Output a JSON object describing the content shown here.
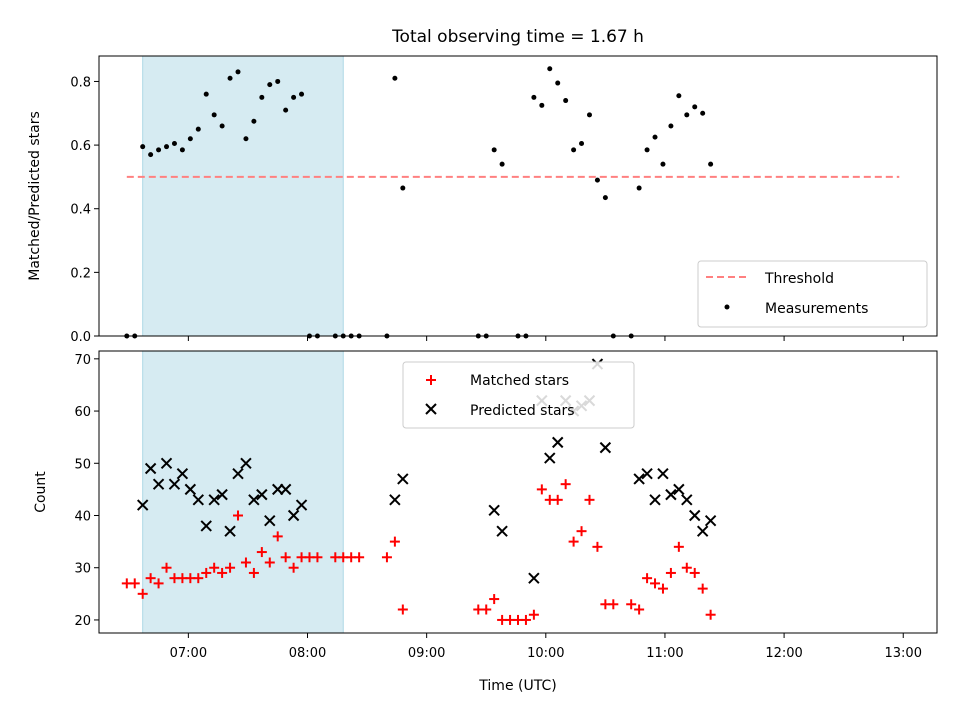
{
  "chart_data": {
    "type": "scatter",
    "title": "Total observing time = 1.67 h",
    "xlabel": "Time (UTC)",
    "x_ticks": [
      "07:00",
      "08:00",
      "09:00",
      "10:00",
      "11:00",
      "12:00",
      "13:00"
    ],
    "xlim": [
      "06:15",
      "13:17"
    ],
    "highlight_span": {
      "start": "06:37",
      "end": "08:18",
      "color": "#add8e6"
    },
    "panels": [
      {
        "ylabel": "Matched/Predicted stars",
        "ylim": [
          0,
          0.88
        ],
        "y_ticks": [
          "0.0",
          "0.2",
          "0.4",
          "0.6",
          "0.8"
        ],
        "legend_position": "lower-right",
        "threshold": {
          "name": "Threshold",
          "value": 0.5,
          "x_range": [
            "06:29",
            "12:58"
          ],
          "color": "#ff8080",
          "style": "dashed"
        },
        "series": [
          {
            "name": "Measurements",
            "marker": "dot",
            "color": "#000000",
            "points": [
              [
                "06:29",
                0.0
              ],
              [
                "06:33",
                0.0
              ],
              [
                "06:37",
                0.595
              ],
              [
                "06:41",
                0.57
              ],
              [
                "06:45",
                0.585
              ],
              [
                "06:49",
                0.595
              ],
              [
                "06:53",
                0.605
              ],
              [
                "06:57",
                0.585
              ],
              [
                "07:01",
                0.62
              ],
              [
                "07:05",
                0.65
              ],
              [
                "07:09",
                0.76
              ],
              [
                "07:13",
                0.695
              ],
              [
                "07:17",
                0.66
              ],
              [
                "07:21",
                0.81
              ],
              [
                "07:25",
                0.83
              ],
              [
                "07:29",
                0.62
              ],
              [
                "07:33",
                0.675
              ],
              [
                "07:37",
                0.75
              ],
              [
                "07:41",
                0.79
              ],
              [
                "07:45",
                0.8
              ],
              [
                "07:49",
                0.71
              ],
              [
                "07:53",
                0.75
              ],
              [
                "07:57",
                0.76
              ],
              [
                "08:01",
                0.0
              ],
              [
                "08:05",
                0.0
              ],
              [
                "08:14",
                0.0
              ],
              [
                "08:18",
                0.0
              ],
              [
                "08:22",
                0.0
              ],
              [
                "08:26",
                0.0
              ],
              [
                "08:40",
                0.0
              ],
              [
                "08:44",
                0.81
              ],
              [
                "08:48",
                0.465
              ],
              [
                "09:26",
                0.0
              ],
              [
                "09:30",
                0.0
              ],
              [
                "09:34",
                0.585
              ],
              [
                "09:38",
                0.54
              ],
              [
                "09:46",
                0.0
              ],
              [
                "09:50",
                0.0
              ],
              [
                "09:54",
                0.75
              ],
              [
                "09:58",
                0.725
              ],
              [
                "10:02",
                0.84
              ],
              [
                "10:06",
                0.795
              ],
              [
                "10:10",
                0.74
              ],
              [
                "10:14",
                0.585
              ],
              [
                "10:18",
                0.605
              ],
              [
                "10:22",
                0.695
              ],
              [
                "10:26",
                0.49
              ],
              [
                "10:30",
                0.435
              ],
              [
                "10:34",
                0.0
              ],
              [
                "10:43",
                0.0
              ],
              [
                "10:47",
                0.465
              ],
              [
                "10:51",
                0.585
              ],
              [
                "10:55",
                0.625
              ],
              [
                "10:59",
                0.54
              ],
              [
                "11:03",
                0.66
              ],
              [
                "11:07",
                0.755
              ],
              [
                "11:11",
                0.695
              ],
              [
                "11:15",
                0.72
              ],
              [
                "11:19",
                0.7
              ],
              [
                "11:23",
                0.54
              ]
            ]
          }
        ]
      },
      {
        "ylabel": "Count",
        "ylim": [
          17.5,
          71.5
        ],
        "y_ticks": [
          "20",
          "30",
          "40",
          "50",
          "60",
          "70"
        ],
        "legend_position": "upper-center",
        "series": [
          {
            "name": "Matched stars",
            "marker": "plus",
            "color": "#ff0000",
            "points": [
              [
                "06:29",
                27
              ],
              [
                "06:33",
                27
              ],
              [
                "06:37",
                25
              ],
              [
                "06:41",
                28
              ],
              [
                "06:45",
                27
              ],
              [
                "06:49",
                30
              ],
              [
                "06:53",
                28
              ],
              [
                "06:57",
                28
              ],
              [
                "07:01",
                28
              ],
              [
                "07:05",
                28
              ],
              [
                "07:09",
                29
              ],
              [
                "07:13",
                30
              ],
              [
                "07:17",
                29
              ],
              [
                "07:21",
                30
              ],
              [
                "07:25",
                40
              ],
              [
                "07:29",
                31
              ],
              [
                "07:33",
                29
              ],
              [
                "07:37",
                33
              ],
              [
                "07:41",
                31
              ],
              [
                "07:45",
                36
              ],
              [
                "07:49",
                32
              ],
              [
                "07:53",
                30
              ],
              [
                "07:57",
                32
              ],
              [
                "08:01",
                32
              ],
              [
                "08:05",
                32
              ],
              [
                "08:14",
                32
              ],
              [
                "08:18",
                32
              ],
              [
                "08:22",
                32
              ],
              [
                "08:26",
                32
              ],
              [
                "08:40",
                32
              ],
              [
                "08:44",
                35
              ],
              [
                "08:48",
                22
              ],
              [
                "09:26",
                22
              ],
              [
                "09:30",
                22
              ],
              [
                "09:34",
                24
              ],
              [
                "09:38",
                20
              ],
              [
                "09:42",
                20
              ],
              [
                "09:46",
                20
              ],
              [
                "09:50",
                20
              ],
              [
                "09:54",
                21
              ],
              [
                "09:58",
                45
              ],
              [
                "10:02",
                43
              ],
              [
                "10:06",
                43
              ],
              [
                "10:10",
                46
              ],
              [
                "10:14",
                35
              ],
              [
                "10:18",
                37
              ],
              [
                "10:22",
                43
              ],
              [
                "10:26",
                34
              ],
              [
                "10:30",
                23
              ],
              [
                "10:34",
                23
              ],
              [
                "10:43",
                23
              ],
              [
                "10:47",
                22
              ],
              [
                "10:51",
                28
              ],
              [
                "10:55",
                27
              ],
              [
                "10:59",
                26
              ],
              [
                "11:03",
                29
              ],
              [
                "11:07",
                34
              ],
              [
                "11:11",
                30
              ],
              [
                "11:15",
                29
              ],
              [
                "11:19",
                26
              ],
              [
                "11:23",
                21
              ]
            ]
          },
          {
            "name": "Predicted stars",
            "marker": "x",
            "color": "#000000",
            "points": [
              [
                "06:37",
                42
              ],
              [
                "06:41",
                49
              ],
              [
                "06:45",
                46
              ],
              [
                "06:49",
                50
              ],
              [
                "06:53",
                46
              ],
              [
                "06:57",
                48
              ],
              [
                "07:01",
                45
              ],
              [
                "07:05",
                43
              ],
              [
                "07:09",
                38
              ],
              [
                "07:13",
                43
              ],
              [
                "07:17",
                44
              ],
              [
                "07:21",
                37
              ],
              [
                "07:25",
                48
              ],
              [
                "07:29",
                50
              ],
              [
                "07:33",
                43
              ],
              [
                "07:37",
                44
              ],
              [
                "07:41",
                39
              ],
              [
                "07:45",
                45
              ],
              [
                "07:49",
                45
              ],
              [
                "07:53",
                40
              ],
              [
                "07:57",
                42
              ],
              [
                "08:44",
                43
              ],
              [
                "08:48",
                47
              ],
              [
                "09:34",
                41
              ],
              [
                "09:38",
                37
              ],
              [
                "09:54",
                28
              ],
              [
                "09:58",
                62
              ],
              [
                "10:02",
                51
              ],
              [
                "10:06",
                54
              ],
              [
                "10:10",
                62
              ],
              [
                "10:14",
                60
              ],
              [
                "10:18",
                61
              ],
              [
                "10:22",
                62
              ],
              [
                "10:26",
                69
              ],
              [
                "10:30",
                53
              ],
              [
                "10:47",
                47
              ],
              [
                "10:51",
                48
              ],
              [
                "10:55",
                43
              ],
              [
                "10:59",
                48
              ],
              [
                "11:03",
                44
              ],
              [
                "11:07",
                45
              ],
              [
                "11:11",
                43
              ],
              [
                "11:15",
                40
              ],
              [
                "11:19",
                37
              ],
              [
                "11:23",
                39
              ]
            ]
          }
        ]
      }
    ]
  }
}
